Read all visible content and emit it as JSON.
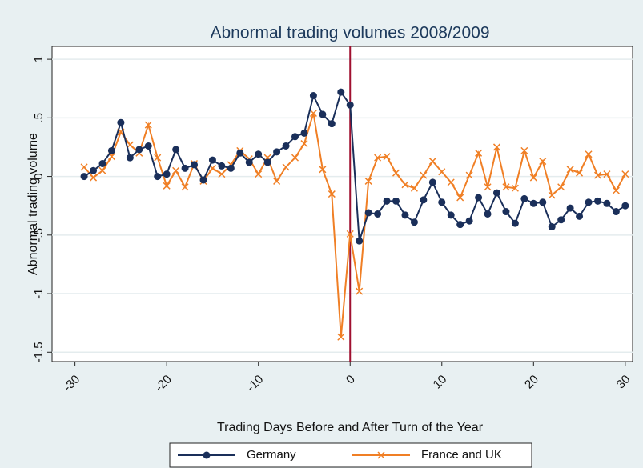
{
  "chart_data": {
    "type": "line",
    "title": "Abnormal trading volumes 2008/2009",
    "x_label": "Trading Days Before and After Turn of the Year",
    "y_label": "Abnormal trading volume",
    "x": [
      -29,
      -28,
      -27,
      -26,
      -25,
      -24,
      -23,
      -22,
      -21,
      -20,
      -19,
      -18,
      -17,
      -16,
      -15,
      -14,
      -13,
      -12,
      -11,
      -10,
      -9,
      -8,
      -7,
      -6,
      -5,
      -4,
      -3,
      -2,
      -1,
      0,
      1,
      2,
      3,
      4,
      5,
      6,
      7,
      8,
      9,
      10,
      11,
      12,
      13,
      14,
      15,
      16,
      17,
      18,
      19,
      20,
      21,
      22,
      23,
      24,
      25,
      26,
      27,
      28,
      29,
      30
    ],
    "series": [
      {
        "name": "France and UK",
        "color": "#f07f25",
        "marker": "x",
        "values": [
          0.08,
          -0.01,
          0.05,
          0.17,
          0.38,
          0.27,
          0.2,
          0.44,
          0.16,
          -0.08,
          0.05,
          -0.09,
          0.11,
          -0.04,
          0.07,
          0.02,
          0.1,
          0.22,
          0.15,
          0.02,
          0.16,
          -0.04,
          0.08,
          0.16,
          0.28,
          0.54,
          0.06,
          -0.15,
          -1.37,
          -0.49,
          -0.98,
          -0.04,
          0.16,
          0.17,
          0.03,
          -0.07,
          -0.1,
          0.01,
          0.13,
          0.04,
          -0.05,
          -0.18,
          0.01,
          0.2,
          -0.09,
          0.25,
          -0.09,
          -0.1,
          0.22,
          -0.01,
          0.13,
          -0.16,
          -0.09,
          0.06,
          0.03,
          0.19,
          0.01,
          0.02,
          -0.12,
          0.02
        ]
      },
      {
        "name": "Germany",
        "color": "#1a2f5a",
        "marker": "circle",
        "values": [
          0.0,
          0.05,
          0.11,
          0.22,
          0.46,
          0.16,
          0.23,
          0.26,
          0.0,
          0.02,
          0.23,
          0.07,
          0.1,
          -0.03,
          0.14,
          0.09,
          0.07,
          0.2,
          0.12,
          0.19,
          0.12,
          0.21,
          0.26,
          0.34,
          0.37,
          0.69,
          0.53,
          0.45,
          0.72,
          0.61,
          -0.55,
          -0.31,
          -0.32,
          -0.21,
          -0.21,
          -0.33,
          -0.39,
          -0.2,
          -0.05,
          -0.22,
          -0.33,
          -0.41,
          -0.38,
          -0.18,
          -0.32,
          -0.14,
          -0.3,
          -0.4,
          -0.19,
          -0.23,
          -0.22,
          -0.43,
          -0.37,
          -0.27,
          -0.34,
          -0.22,
          -0.21,
          -0.23,
          -0.3,
          -0.25
        ]
      }
    ],
    "legend_order": [
      1,
      0
    ],
    "xlim": [
      -32.5,
      30.8
    ],
    "xticks": [
      -30,
      -20,
      -10,
      0,
      10,
      20,
      30
    ],
    "ylim": [
      -1.58,
      1.11
    ],
    "yticks": [
      {
        "value": -1.5,
        "label": "-1.5"
      },
      -1,
      {
        "value": -0.5,
        "label": "-.5"
      },
      0,
      {
        "value": 0.5,
        "label": ".5"
      },
      1
    ],
    "grid": true,
    "vline": 0,
    "vline_color": "#a01030",
    "legend": "bottom"
  }
}
